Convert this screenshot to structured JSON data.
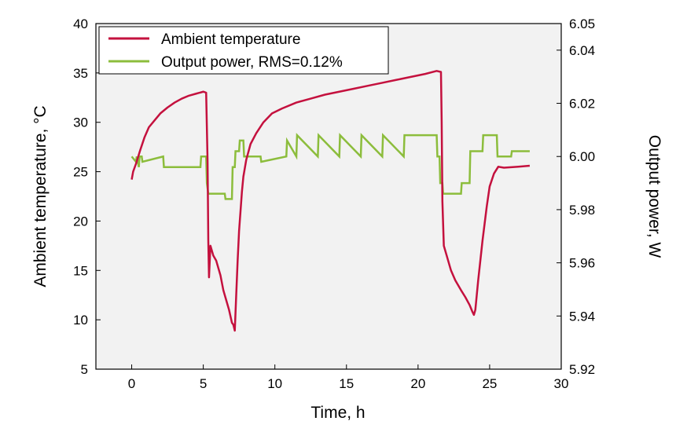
{
  "chart_data": {
    "type": "line",
    "title": "",
    "xlabel": "Time, h",
    "ylabel_left": "Ambient temperature, °C",
    "ylabel_right": "Output power, W",
    "xlim": [
      -2.5,
      30
    ],
    "ylim_left": [
      5,
      40
    ],
    "ylim_right": [
      5.92,
      6.05
    ],
    "x_ticks": [
      0,
      5,
      10,
      15,
      20,
      25,
      30
    ],
    "y_ticks_left": [
      5,
      10,
      15,
      20,
      25,
      30,
      35,
      40
    ],
    "y_ticks_right": [
      "5.92",
      "5.94",
      "5.96",
      "5.98",
      "6.00",
      "6.02",
      "6.04",
      "6.05"
    ],
    "grid": false,
    "legend_position": "top-left",
    "plot_background": "#f2f2f2",
    "colors": {
      "temperature": "#c4113e",
      "power": "#8cbd3c"
    },
    "series": [
      {
        "name": "Ambient temperature",
        "axis": "left",
        "x": [
          0,
          0.1,
          0.3,
          0.6,
          0.9,
          1.2,
          1.6,
          2.0,
          2.5,
          3.0,
          3.5,
          4.0,
          4.5,
          5.0,
          5.2,
          5.3,
          5.35,
          5.4,
          5.5,
          5.7,
          5.9,
          6.2,
          6.4,
          6.6,
          6.8,
          7.0,
          7.1,
          7.2,
          7.3,
          7.4,
          7.5,
          7.6,
          7.7,
          7.8,
          8.0,
          8.3,
          8.7,
          9.2,
          9.8,
          10.5,
          11.5,
          12.5,
          13.5,
          14.5,
          15.5,
          16.5,
          17.5,
          18.5,
          19.5,
          20.5,
          21.3,
          21.6,
          21.65,
          21.7,
          21.8,
          22.0,
          22.3,
          22.6,
          23.0,
          23.3,
          23.6,
          23.8,
          23.9,
          24.0,
          24.2,
          24.5,
          24.8,
          25.0,
          25.3,
          25.6,
          26.0,
          27.0,
          27.8
        ],
        "values": [
          24.2,
          25.0,
          25.8,
          27.2,
          28.5,
          29.5,
          30.2,
          30.9,
          31.5,
          32.0,
          32.4,
          32.7,
          32.9,
          33.1,
          33.0,
          26.0,
          18.0,
          14.3,
          17.5,
          16.5,
          16.0,
          14.5,
          13.0,
          12.0,
          11.0,
          9.7,
          9.5,
          8.9,
          12.5,
          16.0,
          19.0,
          21.0,
          23.0,
          24.5,
          26.2,
          27.8,
          28.9,
          30.0,
          30.9,
          31.4,
          32.0,
          32.4,
          32.8,
          33.1,
          33.4,
          33.7,
          34.0,
          34.3,
          34.6,
          34.9,
          35.2,
          35.1,
          30.0,
          22.0,
          17.5,
          16.5,
          15.0,
          14.0,
          13.0,
          12.3,
          11.5,
          10.8,
          10.5,
          11.0,
          14.0,
          18.0,
          21.5,
          23.5,
          24.8,
          25.5,
          25.4,
          25.5,
          25.6
        ]
      },
      {
        "name": "Output power, RMS=0.12%",
        "axis": "right",
        "x": [
          0,
          0.3,
          0.35,
          0.5,
          0.55,
          0.7,
          0.75,
          2.2,
          2.25,
          4.8,
          4.85,
          5.2,
          5.25,
          5.35,
          5.4,
          6.5,
          6.55,
          7.0,
          7.05,
          7.2,
          7.25,
          7.5,
          7.55,
          7.8,
          7.85,
          9.0,
          9.05,
          10.8,
          10.85,
          11.5,
          11.55,
          13.0,
          13.05,
          14.5,
          14.55,
          16.0,
          16.05,
          17.5,
          17.55,
          19.0,
          19.05,
          21.3,
          21.35,
          21.5,
          21.55,
          21.7,
          21.75,
          23.0,
          23.05,
          23.6,
          23.65,
          24.5,
          24.55,
          25.5,
          25.55,
          26.5,
          26.55,
          27.8
        ],
        "values": [
          6.0,
          5.998,
          6.0,
          5.996,
          6.0,
          6.0,
          5.998,
          6.0,
          5.996,
          5.996,
          6.0,
          6.0,
          5.99,
          5.986,
          5.986,
          5.986,
          5.984,
          5.984,
          5.996,
          5.996,
          6.002,
          6.002,
          6.006,
          6.006,
          6.0,
          6.0,
          5.998,
          6.0,
          6.006,
          6.0,
          6.008,
          6.0,
          6.008,
          6.0,
          6.008,
          6.0,
          6.008,
          6.0,
          6.008,
          6.0,
          6.008,
          6.008,
          6.0,
          6.0,
          5.99,
          5.99,
          5.986,
          5.986,
          5.99,
          5.99,
          6.002,
          6.002,
          6.008,
          6.008,
          6.0,
          6.0,
          6.002,
          6.002
        ]
      }
    ]
  }
}
